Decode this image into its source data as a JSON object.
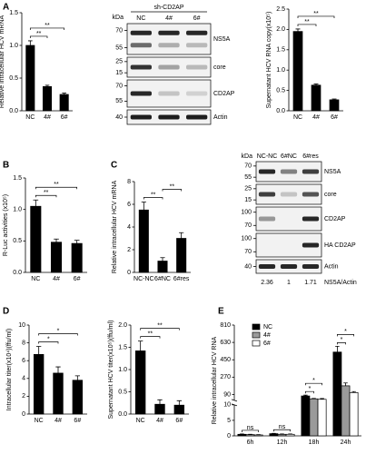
{
  "panels": [
    "A",
    "B",
    "C",
    "D",
    "E"
  ],
  "blots": [
    {
      "unit": "kDa",
      "header": "sh-CD2AP",
      "lanes": [
        "NC",
        "4#",
        "6#"
      ],
      "rows": [
        {
          "name": "NS5A",
          "markers": [
            70,
            55
          ]
        },
        {
          "name": "core",
          "markers": [
            25,
            15
          ]
        },
        {
          "name": "CD2AP",
          "markers": [
            70,
            55
          ]
        },
        {
          "name": "Actin",
          "markers": [
            40
          ]
        }
      ]
    },
    {
      "unit": "kDa",
      "lanes": [
        "NC-NC",
        "6#NC",
        "6#res"
      ],
      "rows": [
        {
          "name": "NS5A",
          "markers": [
            70,
            55
          ]
        },
        {
          "name": "core",
          "markers": [
            25,
            15
          ]
        },
        {
          "name": "CD2AP",
          "markers": [
            100,
            70
          ]
        },
        {
          "name": "HA CD2AP",
          "markers": [
            100,
            70
          ]
        },
        {
          "name": "Actin",
          "markers": [
            40
          ]
        }
      ],
      "quant": {
        "label": "NS5A/Actin",
        "values": [
          2.36,
          1,
          1.71
        ]
      }
    }
  ],
  "chart_data": [
    {
      "type": "bar",
      "ylabel": "Relative intracellular HCV mRNA",
      "categories": [
        "NC",
        "4#",
        "6#"
      ],
      "values": [
        1.0,
        0.37,
        0.25
      ],
      "errors": [
        0.07,
        0.02,
        0.02
      ],
      "color": "#000000",
      "ylim": [
        0,
        1.5
      ],
      "yticks": [
        {
          "value": 0,
          "label": "0.0"
        },
        0.5,
        {
          "value": 1,
          "label": "1.0"
        },
        1.5
      ],
      "annotations": [
        {
          "text": "**",
          "between": [
            "NC",
            "4#"
          ]
        },
        {
          "text": "**",
          "between": [
            "NC",
            "6#"
          ]
        }
      ]
    },
    {
      "type": "bar",
      "ylabel": "Supernatant HCV RNA copy(x10⁵)",
      "categories": [
        "NC",
        "4#",
        "6#"
      ],
      "values": [
        1.95,
        0.63,
        0.27
      ],
      "errors": [
        0.06,
        0.03,
        0.02
      ],
      "color": "#000000",
      "ylim": [
        0,
        2.5
      ],
      "yticks": [
        {
          "value": 0,
          "label": "0.0"
        },
        0.5,
        {
          "value": 1,
          "label": "1.0"
        },
        1.5,
        {
          "value": 2,
          "label": "2.0"
        },
        2.5
      ],
      "annotations": [
        {
          "text": "**",
          "between": [
            "NC",
            "4#"
          ]
        },
        {
          "text": "**",
          "between": [
            "NC",
            "6#"
          ]
        }
      ]
    },
    {
      "type": "bar",
      "ylabel": "R-Luc activities (x10⁵)",
      "categories": [
        "NC",
        "4#",
        "6#"
      ],
      "values": [
        1.05,
        0.48,
        0.46
      ],
      "errors": [
        0.1,
        0.05,
        0.05
      ],
      "color": "#000000",
      "ylim": [
        0,
        1.5
      ],
      "yticks": [
        {
          "value": 0,
          "label": "0.0"
        },
        0.5,
        {
          "value": 1,
          "label": "1.0"
        },
        1.5
      ],
      "annotations": [
        {
          "text": "**",
          "between": [
            "NC",
            "4#"
          ]
        },
        {
          "text": "**",
          "between": [
            "NC",
            "6#"
          ]
        }
      ]
    },
    {
      "type": "bar",
      "ylabel": "Relative intracellular HCV mRNA",
      "categories": [
        "NC-NC",
        "6#NC",
        "6#res"
      ],
      "values": [
        5.5,
        1.0,
        3.0
      ],
      "errors": [
        0.7,
        0.3,
        0.5
      ],
      "color": "#000000",
      "ylim": [
        0,
        8
      ],
      "yticks": [
        0,
        2,
        4,
        6,
        8
      ],
      "annotations": [
        {
          "text": "**",
          "between": [
            "NC-NC",
            "6#NC"
          ]
        },
        {
          "text": "**",
          "between": [
            "6#NC",
            "6#res"
          ]
        }
      ]
    },
    {
      "type": "bar",
      "ylabel": "Intracellular  titer(x10⁴)(ffu/ml)",
      "categories": [
        "NC",
        "4#",
        "6#"
      ],
      "values": [
        6.7,
        4.6,
        3.8
      ],
      "errors": [
        0.9,
        0.7,
        0.5
      ],
      "color": "#000000",
      "ylim": [
        0,
        10
      ],
      "yticks": [
        0,
        2,
        4,
        6,
        8,
        10
      ],
      "annotations": [
        {
          "text": "*",
          "between": [
            "NC",
            "4#"
          ]
        },
        {
          "text": "*",
          "between": [
            "NC",
            "6#"
          ]
        }
      ]
    },
    {
      "type": "bar",
      "ylabel": "Supernatant HCV titer(x10⁵)(ffu/ml)",
      "categories": [
        "NC",
        "4#",
        "6#"
      ],
      "values": [
        1.42,
        0.22,
        0.2
      ],
      "errors": [
        0.22,
        0.1,
        0.1
      ],
      "color": "#000000",
      "ylim": [
        0,
        2
      ],
      "yticks": [
        {
          "value": 0,
          "label": "0.0"
        },
        0.5,
        {
          "value": 1,
          "label": "1.0"
        },
        1.5,
        {
          "value": 2,
          "label": "2.0"
        }
      ],
      "annotations": [
        {
          "text": "**",
          "between": [
            "NC",
            "4#"
          ]
        },
        {
          "text": "**",
          "between": [
            "NC",
            "6#"
          ]
        }
      ]
    },
    {
      "type": "bar",
      "ylabel": "Relative intracellular HCV RNA",
      "categories": [
        "6h",
        "12h",
        "18h",
        "24h"
      ],
      "series": [
        {
          "name": "NC",
          "color": "#000000",
          "values": [
            0.5,
            0.7,
            75,
            530
          ],
          "errors": [
            0.1,
            0.1,
            8,
            60
          ]
        },
        {
          "name": "4#",
          "color": "#9a9a9a",
          "values": [
            0.4,
            0.5,
            45,
            180
          ],
          "errors": [
            0.1,
            0.1,
            5,
            30
          ]
        },
        {
          "name": "6#",
          "color": "#ffffff",
          "values": [
            0.3,
            0.5,
            40,
            110
          ],
          "errors": [
            0.1,
            0.1,
            8,
            10
          ]
        }
      ],
      "ylim": [
        0,
        810
      ],
      "ybreak": [
        10,
        30
      ],
      "yticks": [
        0,
        5,
        10,
        90,
        270,
        450,
        630,
        810
      ],
      "legend": "upper-left",
      "annotations": [
        {
          "text": "ns",
          "category": "6h",
          "between": [
            "NC",
            "6#"
          ]
        },
        {
          "text": "ns",
          "category": "12h",
          "between": [
            "NC",
            "6#"
          ]
        },
        {
          "text": "*",
          "category": "18h",
          "between": [
            "NC",
            "4#"
          ]
        },
        {
          "text": "*",
          "category": "18h",
          "between": [
            "NC",
            "6#"
          ]
        },
        {
          "text": "*",
          "category": "24h",
          "between": [
            "NC",
            "4#"
          ]
        },
        {
          "text": "*",
          "category": "24h",
          "between": [
            "NC",
            "6#"
          ]
        }
      ]
    }
  ]
}
